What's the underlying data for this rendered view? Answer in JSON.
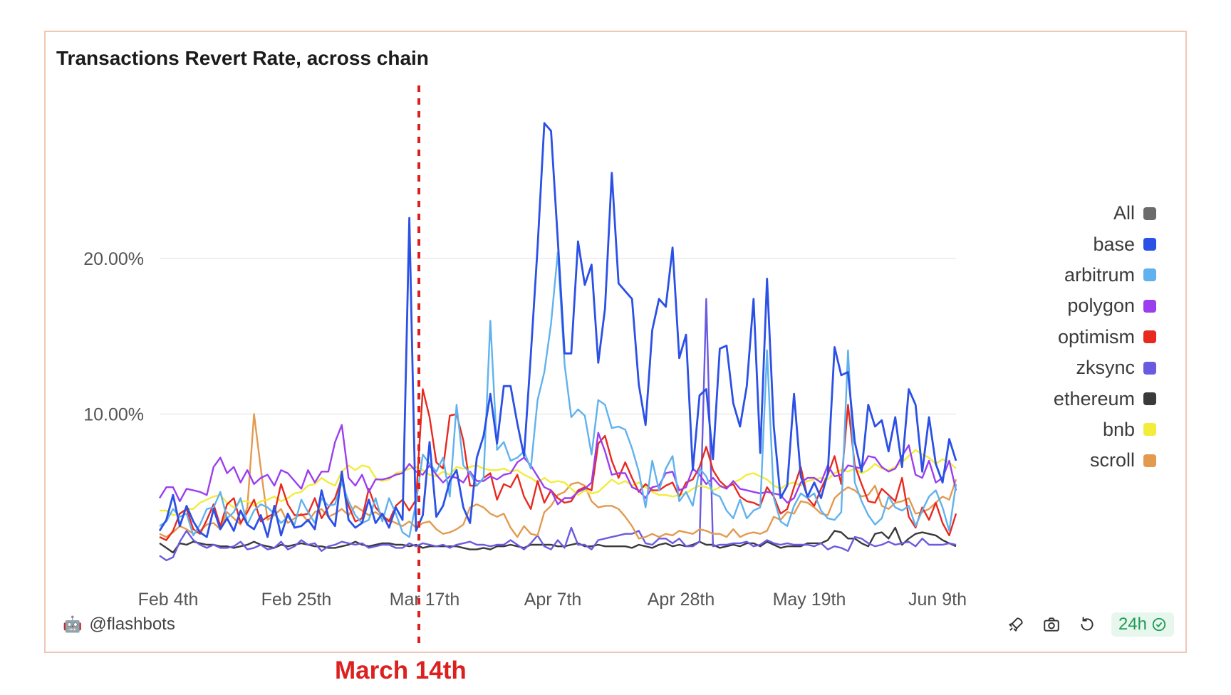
{
  "chart_data": {
    "type": "line",
    "title": "Transactions Revert Rate, across chain",
    "xlabel": "",
    "ylabel": "",
    "x_tick_labels": [
      "Feb 4th",
      "Feb 25th",
      "Mar 17th",
      "Apr 7th",
      "Apr 28th",
      "May 19th",
      "Jun 9th"
    ],
    "y_tick_labels": [
      "10.00%",
      "20.00%"
    ],
    "y_ticks": [
      10,
      20
    ],
    "ylim": [
      0,
      28
    ],
    "grid": true,
    "legend": "right",
    "annotation": {
      "label": "March 14th",
      "day_index": 38
    },
    "series": [
      {
        "name": "All",
        "color": "#6b6b6b",
        "values": []
      },
      {
        "name": "base",
        "color": "#2b50e6",
        "values": [
          2.5,
          3.2,
          4.8,
          2.8,
          4.1,
          3.1,
          2.4,
          2.1,
          3.9,
          2.6,
          3.3,
          2.5,
          3.8,
          2.9,
          2.6,
          3.5,
          2.1,
          4.1,
          2.2,
          3.6,
          2.7,
          2.8,
          3.2,
          2.6,
          5.1,
          3.4,
          2.8,
          6.3,
          3.2,
          2.7,
          3.0,
          4.5,
          3.0,
          3.6,
          2.7,
          4.0,
          3.2,
          22.6,
          2.5,
          3.5,
          8.2,
          3.4,
          4.1,
          5.7,
          6.4,
          4.0,
          3.0,
          7.2,
          8.6,
          11.3,
          8.1,
          11.8,
          11.8,
          9.4,
          7.3,
          13.8,
          20.7,
          28.7,
          28.2,
          21.2,
          13.9,
          13.9,
          21.1,
          18.3,
          19.6,
          13.3,
          16.8,
          25.5,
          18.4,
          17.9,
          17.4,
          11.9,
          9.3,
          15.4,
          17.4,
          16.9,
          20.7,
          13.6,
          15.1,
          6.4,
          11.2,
          11.6,
          7.1,
          14.2,
          14.4,
          10.7,
          9.2,
          11.8,
          17.4,
          7.5,
          18.7,
          9.2,
          4.6,
          5.4,
          11.3,
          6.0,
          4.7,
          5.6,
          4.6,
          6.2,
          14.3,
          12.5,
          12.7,
          8.2,
          6.3,
          10.6,
          9.2,
          9.6,
          7.6,
          9.8,
          6.6,
          11.6,
          10.6,
          6.3,
          9.8,
          6.8,
          5.6,
          8.4,
          7.0
        ]
      },
      {
        "name": "arbitrum",
        "color": "#5fb2ee",
        "values": [
          2.8,
          3.1,
          3.9,
          3.4,
          3.6,
          2.2,
          2.9,
          3.9,
          4.0,
          5.0,
          3.3,
          3.7,
          4.6,
          2.9,
          3.8,
          4.2,
          4.0,
          3.6,
          3.0,
          3.4,
          2.9,
          4.5,
          3.7,
          3.0,
          4.6,
          4.1,
          4.2,
          5.6,
          4.4,
          3.5,
          3.0,
          3.2,
          4.6,
          3.1,
          4.6,
          3.6,
          2.4,
          2.1,
          4.3,
          7.4,
          6.8,
          6.3,
          7.2,
          4.7,
          10.6,
          6.7,
          6.2,
          5.4,
          5.9,
          16.0,
          7.7,
          8.2,
          7.0,
          7.2,
          7.6,
          6.5,
          10.9,
          12.7,
          15.8,
          20.4,
          13.2,
          9.8,
          10.3,
          9.9,
          7.4,
          10.9,
          10.6,
          9.1,
          9.2,
          9.0,
          7.8,
          6.3,
          4.0,
          7.0,
          5.1,
          6.5,
          7.3,
          4.4,
          5.0,
          4.1,
          6.5,
          6.0,
          4.9,
          4.7,
          3.8,
          3.3,
          4.5,
          3.3,
          3.8,
          4.0,
          14.1,
          4.6,
          3.1,
          2.8,
          4.1,
          4.9,
          4.6,
          4.9,
          3.8,
          3.3,
          3.2,
          3.7,
          14.1,
          5.6,
          4.4,
          3.5,
          2.9,
          3.3,
          4.7,
          4.0,
          3.8,
          4.1,
          2.8,
          3.8,
          4.7,
          5.1,
          4.0,
          2.5,
          5.5
        ]
      },
      {
        "name": "polygon",
        "color": "#9b3ef0",
        "values": [
          4.6,
          5.3,
          5.3,
          4.4,
          5.2,
          5.1,
          5.0,
          4.8,
          6.6,
          7.2,
          6.2,
          6.6,
          5.6,
          6.4,
          5.5,
          5.9,
          6.1,
          5.4,
          6.4,
          6.2,
          5.7,
          5.2,
          6.4,
          5.6,
          6.3,
          6.3,
          8.2,
          9.3,
          5.9,
          5.4,
          6.1,
          5.0,
          5.8,
          5.8,
          5.9,
          6.1,
          6.2,
          6.8,
          6.3,
          6.1,
          6.7,
          6.1,
          5.6,
          6.0,
          5.9,
          5.6,
          6.3,
          5.7,
          5.7,
          6.0,
          5.8,
          6.1,
          6.2,
          6.9,
          7.2,
          6.7,
          6.0,
          5.3,
          5.1,
          4.2,
          4.6,
          4.6,
          5.0,
          5.2,
          5.6,
          8.8,
          7.6,
          6.1,
          6.2,
          6.2,
          5.3,
          5.1,
          4.6,
          5.3,
          5.4,
          6.2,
          6.3,
          5.1,
          5.3,
          6.5,
          6.1,
          5.5,
          5.9,
          5.4,
          5.2,
          5.7,
          5.2,
          5.1,
          5.0,
          4.9,
          5.0,
          4.9,
          4.8,
          4.3,
          4.6,
          5.6,
          5.9,
          5.9,
          5.6,
          6.7,
          6.0,
          6.1,
          6.7,
          6.6,
          6.5,
          7.3,
          7.2,
          6.6,
          6.3,
          6.5,
          7.3,
          8.0,
          6.1,
          5.9,
          7.0,
          5.6,
          5.9,
          7.0,
          5.1
        ]
      },
      {
        "name": "optimism",
        "color": "#e8291f",
        "values": [
          2.1,
          1.9,
          2.5,
          3.6,
          3.9,
          2.6,
          2.3,
          3.2,
          4.2,
          2.8,
          4.2,
          4.6,
          3.0,
          3.7,
          4.5,
          3.1,
          3.4,
          3.6,
          5.5,
          4.2,
          3.5,
          3.5,
          3.6,
          4.6,
          3.3,
          4.0,
          4.6,
          5.9,
          4.1,
          3.1,
          3.3,
          5.2,
          4.0,
          3.5,
          3.1,
          4.1,
          4.5,
          3.8,
          4.5,
          11.6,
          9.8,
          6.9,
          6.5,
          9.9,
          10.0,
          8.3,
          5.4,
          5.4,
          5.9,
          6.2,
          4.5,
          5.5,
          5.3,
          6.1,
          4.7,
          3.9,
          5.7,
          4.3,
          5.1,
          4.6,
          4.3,
          4.4,
          5.1,
          5.3,
          5.1,
          8.1,
          8.6,
          7.0,
          5.9,
          6.9,
          5.9,
          5.0,
          5.5,
          5.1,
          5.1,
          5.4,
          5.6,
          4.7,
          5.6,
          5.8,
          6.6,
          7.9,
          6.4,
          5.7,
          5.3,
          5.5,
          4.7,
          4.4,
          4.3,
          4.1,
          5.3,
          4.7,
          3.6,
          3.9,
          5.3,
          6.6,
          4.6,
          4.1,
          5.2,
          6.1,
          7.3,
          5.5,
          10.6,
          6.7,
          5.5,
          4.4,
          4.3,
          5.2,
          4.8,
          4.4,
          5.9,
          3.4,
          2.7,
          4.0,
          3.2,
          4.3,
          3.0,
          2.2,
          3.6
        ]
      },
      {
        "name": "zksync",
        "color": "#6a5ae0",
        "values": [
          0.9,
          0.6,
          0.8,
          1.8,
          2.5,
          1.9,
          1.6,
          1.4,
          1.6,
          1.4,
          1.4,
          1.5,
          1.8,
          1.3,
          1.4,
          1.6,
          1.3,
          1.4,
          1.8,
          1.3,
          1.5,
          1.9,
          1.6,
          1.7,
          1.2,
          1.5,
          1.6,
          1.8,
          1.7,
          1.6,
          1.7,
          1.4,
          1.5,
          1.6,
          1.6,
          1.4,
          1.4,
          1.7,
          1.5,
          1.7,
          1.6,
          1.5,
          1.6,
          1.4,
          1.6,
          1.7,
          1.8,
          1.6,
          1.6,
          1.5,
          1.6,
          1.6,
          1.9,
          1.6,
          1.3,
          1.7,
          2.2,
          1.5,
          1.3,
          1.9,
          1.4,
          2.7,
          1.6,
          1.6,
          1.3,
          1.9,
          2.0,
          2.1,
          2.2,
          2.3,
          2.3,
          2.5,
          1.7,
          1.6,
          2.0,
          2.0,
          1.7,
          2.0,
          1.5,
          1.5,
          1.8,
          17.4,
          1.5,
          1.6,
          1.6,
          1.7,
          1.7,
          1.8,
          1.5,
          1.6,
          1.9,
          1.7,
          1.6,
          1.7,
          1.6,
          1.6,
          1.6,
          1.5,
          1.7,
          1.3,
          1.5,
          1.4,
          1.2,
          2.1,
          2.0,
          1.7,
          1.5,
          1.6,
          1.8,
          1.6,
          1.7,
          1.8,
          1.5,
          2.0,
          1.6,
          1.6,
          1.6,
          1.7,
          1.6
        ]
      },
      {
        "name": "ethereum",
        "color": "#3a3a3a",
        "values": [
          1.7,
          1.4,
          1.1,
          1.7,
          1.6,
          1.8,
          1.7,
          1.6,
          1.6,
          1.5,
          1.5,
          1.4,
          1.5,
          1.6,
          1.8,
          1.6,
          1.5,
          1.4,
          1.6,
          1.5,
          1.6,
          1.7,
          1.6,
          1.5,
          1.5,
          1.4,
          1.4,
          1.5,
          1.6,
          1.8,
          1.6,
          1.5,
          1.6,
          1.7,
          1.7,
          1.6,
          1.6,
          1.5,
          1.6,
          1.4,
          1.5,
          1.5,
          1.5,
          1.5,
          1.5,
          1.4,
          1.3,
          1.3,
          1.4,
          1.3,
          1.5,
          1.5,
          1.6,
          1.5,
          1.4,
          1.6,
          1.6,
          1.6,
          1.6,
          1.5,
          1.5,
          1.6,
          1.7,
          1.5,
          1.5,
          1.6,
          1.5,
          1.5,
          1.5,
          1.5,
          1.4,
          1.6,
          1.5,
          1.4,
          1.6,
          1.7,
          1.5,
          1.6,
          1.5,
          1.6,
          1.8,
          1.6,
          1.6,
          1.4,
          1.5,
          1.6,
          1.5,
          1.7,
          1.7,
          1.5,
          1.8,
          1.6,
          1.4,
          1.5,
          1.5,
          1.5,
          1.7,
          1.7,
          1.7,
          1.9,
          2.5,
          2.4,
          2.0,
          2.0,
          1.7,
          1.5,
          2.3,
          2.4,
          2.0,
          2.7,
          1.6,
          2.0,
          2.3,
          2.4,
          2.3,
          2.2,
          1.9,
          1.7,
          1.5
        ]
      },
      {
        "name": "bnb",
        "color": "#f2ec3b",
        "values": [
          3.8,
          3.8,
          3.5,
          3.6,
          3.9,
          3.9,
          4.3,
          4.5,
          4.7,
          4.8,
          4.3,
          4.0,
          4.4,
          4.4,
          4.1,
          4.4,
          4.5,
          4.7,
          4.4,
          4.6,
          4.9,
          5.0,
          5.4,
          5.5,
          5.9,
          5.6,
          5.4,
          6.3,
          6.7,
          6.4,
          6.7,
          6.6,
          5.9,
          5.7,
          5.8,
          6.2,
          6.3,
          6.5,
          6.6,
          6.4,
          6.1,
          6.0,
          6.3,
          6.1,
          6.6,
          6.5,
          6.6,
          6.7,
          6.5,
          6.4,
          6.4,
          6.5,
          6.3,
          6.4,
          6.1,
          5.9,
          5.6,
          5.9,
          5.6,
          5.7,
          5.6,
          5.2,
          4.8,
          5.1,
          4.9,
          5.0,
          5.4,
          5.8,
          5.5,
          5.7,
          5.4,
          5.6,
          5.3,
          5.0,
          4.8,
          4.8,
          4.7,
          4.8,
          4.9,
          5.2,
          5.4,
          5.3,
          5.1,
          5.3,
          5.3,
          5.6,
          5.8,
          6.1,
          6.2,
          6.0,
          5.8,
          5.4,
          5.2,
          5.5,
          5.6,
          5.4,
          5.7,
          5.8,
          5.9,
          5.8,
          6.2,
          6.4,
          6.3,
          6.5,
          6.2,
          6.4,
          6.8,
          6.5,
          6.4,
          6.6,
          6.9,
          7.3,
          7.7,
          7.4,
          7.2,
          6.8,
          7.1,
          6.9,
          6.5
        ]
      },
      {
        "name": "scroll",
        "color": "#e39a4e",
        "values": [
          2.3,
          2.1,
          2.4,
          2.8,
          2.6,
          2.3,
          2.5,
          2.9,
          3.0,
          2.6,
          3.7,
          3.3,
          2.9,
          4.0,
          10.0,
          6.5,
          3.2,
          3.5,
          3.9,
          3.0,
          3.3,
          3.6,
          3.1,
          3.7,
          3.9,
          3.4,
          3.6,
          3.9,
          3.5,
          4.1,
          3.8,
          3.5,
          3.7,
          3.4,
          3.2,
          3.0,
          2.8,
          3.1,
          2.7,
          3.0,
          3.1,
          2.6,
          2.3,
          2.4,
          2.6,
          2.9,
          4.0,
          4.2,
          4.0,
          3.6,
          3.4,
          3.6,
          2.7,
          2.1,
          2.8,
          2.3,
          2.2,
          3.7,
          4.1,
          4.8,
          5.0,
          5.5,
          5.6,
          5.4,
          4.4,
          4.0,
          4.1,
          4.1,
          3.9,
          3.4,
          2.8,
          2.0,
          2.1,
          2.3,
          2.1,
          2.3,
          2.2,
          2.5,
          2.4,
          2.3,
          2.6,
          2.5,
          2.3,
          2.3,
          2.1,
          2.6,
          2.1,
          2.3,
          2.4,
          2.3,
          2.5,
          3.4,
          3.2,
          3.7,
          3.6,
          4.4,
          4.3,
          4.0,
          3.6,
          3.5,
          4.6,
          5.0,
          5.3,
          5.1,
          4.7,
          4.8,
          5.4,
          4.1,
          3.9,
          4.3,
          4.4,
          4.6,
          3.6,
          3.7,
          3.9,
          4.3,
          4.7,
          4.5,
          5.8
        ]
      }
    ]
  },
  "footer": {
    "brand_label": "@flashbots",
    "refresh_label": "24h"
  },
  "icons": {
    "brand": "flashbots-logo-icon",
    "rocket": "rocket-icon",
    "camera": "camera-icon",
    "reload": "reload-icon",
    "check": "check-circle-icon"
  }
}
